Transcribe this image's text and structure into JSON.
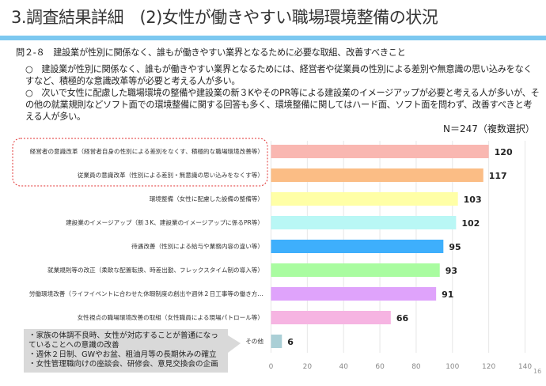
{
  "header": {
    "title": "3.調査結果詳細　(2)女性が働きやすい職場環境整備の状況"
  },
  "question": "問２-８　建設業が性別に関係なく、誰もが働きやすい業界となるために必要な取組、改善すべきこと",
  "bullets": [
    "○　建設業が性別に関係なく、誰もが働きやすい業界となるためには、経営者や従業員の性別による差別や無意識の思い込みをなくすなど、積極的な意識改革等が必要と考える人が多い。",
    "○　次いで女性に配慮した職場環境の整備や建設業の新３KやそのPR等による建設業のイメージアップが必要と考える人が多いが、その他の就業規則などソフト面での環境整備に関する回答も多く、環境整備に関してはハード面、ソフト面を問わず、改善すべきと考える人が多い。"
  ],
  "sample_note": "N＝247（複数選択）",
  "other_note": [
    "・家族の体調不良時、女性が対応することが普通になっていることへの意識の改善",
    "・週休２日制、GWやお盆、粗油月等の長期休みの確立",
    "・女性管理職向けの座談会、研修会、意見交換会の企画"
  ],
  "page_number": "16",
  "chart_data": {
    "type": "bar",
    "orientation": "horizontal",
    "categories": [
      "経営者の意識改革（経営者自身の性別による差別をなくす、積極的な職場環境改善等）",
      "従業員の意識改革（性別による差別・無意識の思い込みをなくす等）",
      "環境整備（女性に配慮した設備の整備等）",
      "建設業のイメージアップ（新３K、建設業のイメージアップに係るPR等）",
      "待遇改善（性別による給与や業務内容の違い等）",
      "就業規則等の改正（柔軟な配置転換、時差出勤、フレックスタイム制の導入等）",
      "労働環境改善（ライフイベントに合わせた休暇制度の創出や週休２日工事等の働き方…",
      "女性視点の職場環境改善の取組（女性職員による現場パトロール等）",
      "その他"
    ],
    "values": [
      120,
      117,
      103,
      102,
      95,
      93,
      91,
      66,
      6
    ],
    "colors": [
      "#f9b7b1",
      "#fbbd85",
      "#ffffa6",
      "#b9f7f5",
      "#3eaffc",
      "#a9fca0",
      "#dfa3fb",
      "#f6b4e2",
      "#aacfd6"
    ],
    "xlim": [
      0,
      140
    ],
    "ticks": [
      "0",
      "20",
      "40",
      "60",
      "80",
      "100",
      "120",
      "140"
    ],
    "grid": true,
    "highlight": "top 2 categories (red dashed outline)"
  }
}
